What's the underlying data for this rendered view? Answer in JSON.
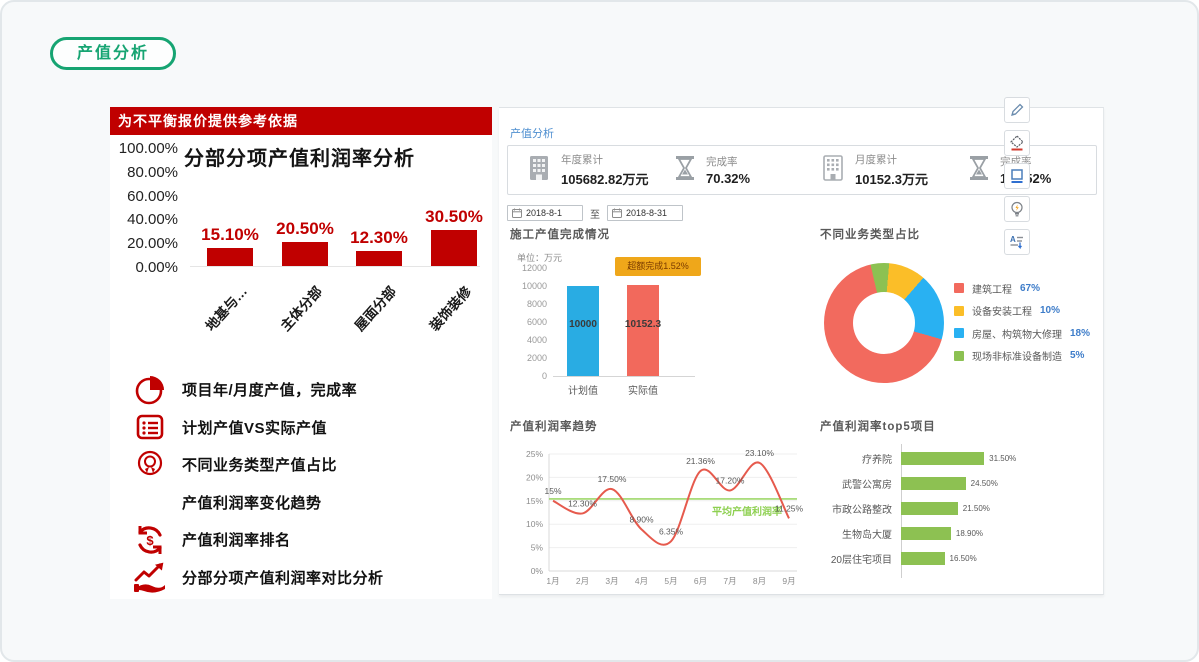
{
  "badge": {
    "label": "产值分析"
  },
  "left_panel": {
    "header": "为不平衡报价提供参考依据",
    "features": [
      {
        "icon": "pie-chart-icon",
        "label": "项目年/月度产值，完成率"
      },
      {
        "icon": "list-icon",
        "label": "计划产值VS实际产值"
      },
      {
        "icon": "award-icon",
        "label": "不同业务类型产值占比"
      },
      {
        "icon": "none",
        "label": "产值利润率变化趋势"
      },
      {
        "icon": "dollar-cycle-icon",
        "label": "产值利润率排名"
      },
      {
        "icon": "trend-hand-icon",
        "label": "分部分项产值利润率对比分析"
      }
    ]
  },
  "dashboard": {
    "breadcrumb": "产值分析",
    "kpis": [
      {
        "icon": "building-icon",
        "label": "年度累计",
        "value": "105682.82万元"
      },
      {
        "icon": "hourglass-icon",
        "label": "完成率",
        "value": "70.32%"
      },
      {
        "icon": "building-icon",
        "label": "月度累计",
        "value": "10152.3万元"
      },
      {
        "icon": "hourglass-icon",
        "label": "完成率",
        "value": "101.52%"
      }
    ],
    "date_filter": {
      "from": "2018-8-1",
      "separator": "至",
      "to": "2018-8-31"
    }
  },
  "toolbar": {
    "buttons": [
      "edit",
      "fill-color",
      "border-color",
      "lightbulb",
      "sort-text"
    ]
  },
  "chart_data": [
    {
      "id": "segment_profit",
      "type": "bar",
      "title": "分部分项产值利润率分析",
      "categories": [
        "地基与…",
        "主体分部",
        "屋面分部",
        "装饰装修"
      ],
      "values": [
        15.1,
        20.5,
        12.3,
        30.5
      ],
      "value_labels": [
        "15.10%",
        "20.50%",
        "12.30%",
        "30.50%"
      ],
      "yticks": [
        "100.00%",
        "80.00%",
        "60.00%",
        "40.00%",
        "20.00%",
        "0.00%"
      ],
      "ylim": [
        0,
        100
      ],
      "bar_color": "#c00000"
    },
    {
      "id": "construction",
      "type": "bar",
      "title": "施工产值完成情况",
      "unit_label": "单位：万元",
      "categories": [
        "计划值",
        "实际值"
      ],
      "values": [
        10000,
        10152.3
      ],
      "value_labels": [
        "10000",
        "10152.3"
      ],
      "colors": [
        "#29ace3",
        "#f2695c"
      ],
      "yticks": [
        12000,
        10000,
        8000,
        6000,
        4000,
        2000,
        0
      ],
      "ylim": [
        0,
        12000
      ],
      "annotation": "超额完成1.52%"
    },
    {
      "id": "business_mix",
      "type": "pie",
      "title": "不同业务类型占比",
      "slices": [
        {
          "label": "建筑工程",
          "pct": "67%",
          "value": 67,
          "color": "#f26a5e"
        },
        {
          "label": "设备安装工程",
          "pct": "10%",
          "value": 10,
          "color": "#fbbe28"
        },
        {
          "label": "房屋、构筑物大修理",
          "pct": "18%",
          "value": 18,
          "color": "#29b1f2"
        },
        {
          "label": "现场非标准设备制造",
          "pct": "5%",
          "value": 5,
          "color": "#8cc152"
        }
      ],
      "start_angle": -13,
      "draw_order": [
        3,
        1,
        2,
        0
      ]
    },
    {
      "id": "profit_trend",
      "type": "line",
      "title": "产值利润率趋势",
      "x": [
        "1月",
        "2月",
        "3月",
        "4月",
        "5月",
        "6月",
        "7月",
        "8月",
        "9月"
      ],
      "values": [
        15,
        12.3,
        17.5,
        8.9,
        6.35,
        21.36,
        17.2,
        23.1,
        11.25
      ],
      "value_labels": [
        "15%",
        "12.30%",
        "17.50%",
        "8.90%",
        "6.35%",
        "21.36%",
        "17.20%",
        "23.10%",
        "11.25%"
      ],
      "yticks": [
        "25%",
        "20%",
        "15%",
        "10%",
        "5%",
        "0%"
      ],
      "ylim": [
        0,
        25
      ],
      "line_color": "#e65a4d",
      "avg_line": {
        "value": 15.4,
        "label": "平均产值利润率",
        "color": "#8ed051"
      }
    },
    {
      "id": "top5",
      "type": "bar",
      "orientation": "horizontal",
      "title": "产值利润率top5项目",
      "categories": [
        "疗养院",
        "武警公寓房",
        "市政公路整改",
        "生物岛大厦",
        "20层住宅项目"
      ],
      "values": [
        31.5,
        24.5,
        21.5,
        18.9,
        16.5
      ],
      "value_labels": [
        "31.50%",
        "24.50%",
        "21.50%",
        "18.90%",
        "16.50%"
      ],
      "bar_color": "#8dc152",
      "xlim": [
        0,
        40
      ]
    }
  ]
}
